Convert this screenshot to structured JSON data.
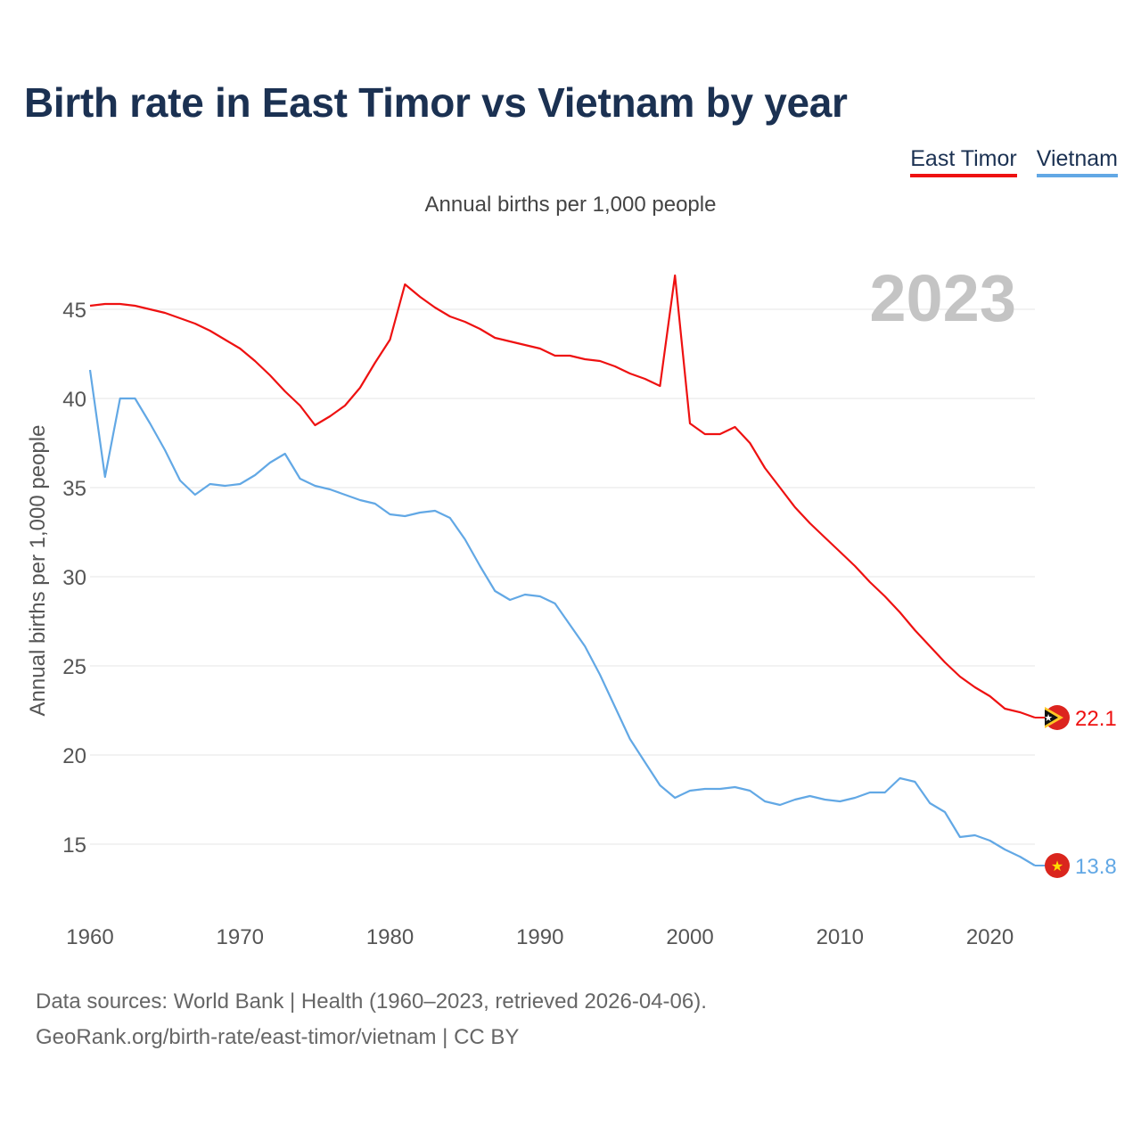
{
  "title": "Birth rate in East Timor vs Vietnam by year",
  "subtitle": "Annual births per 1,000 people",
  "year_watermark": "2023",
  "legend": [
    {
      "label": "East Timor",
      "color": "#ee1111"
    },
    {
      "label": "Vietnam",
      "color": "#62a8e5"
    }
  ],
  "footer": {
    "line1": "Data sources: World Bank | Health (1960–2023, retrieved 2026-04-06).",
    "line2": "GeoRank.org/birth-rate/east-timor/vietnam | CC BY"
  },
  "chart_data": {
    "type": "line",
    "title": "Birth rate in East Timor vs Vietnam by year",
    "ylabel": "Annual births per 1,000 people",
    "xlabel": "",
    "xlim": [
      1960,
      2023
    ],
    "ylim": [
      11,
      49
    ],
    "yticks": [
      15,
      20,
      25,
      30,
      35,
      40,
      45
    ],
    "xticks": [
      1960,
      1970,
      1980,
      1990,
      2000,
      2010,
      2020
    ],
    "grid": true,
    "legend_position": "top-right",
    "x": [
      1960,
      1961,
      1962,
      1963,
      1964,
      1965,
      1966,
      1967,
      1968,
      1969,
      1970,
      1971,
      1972,
      1973,
      1974,
      1975,
      1976,
      1977,
      1978,
      1979,
      1980,
      1981,
      1982,
      1983,
      1984,
      1985,
      1986,
      1987,
      1988,
      1989,
      1990,
      1991,
      1992,
      1993,
      1994,
      1995,
      1996,
      1997,
      1998,
      1999,
      2000,
      2001,
      2002,
      2003,
      2004,
      2005,
      2006,
      2007,
      2008,
      2009,
      2010,
      2011,
      2012,
      2013,
      2014,
      2015,
      2016,
      2017,
      2018,
      2019,
      2020,
      2021,
      2022,
      2023
    ],
    "series": [
      {
        "name": "East Timor",
        "color": "#ee1111",
        "end_label": "22.1",
        "values": [
          45.2,
          45.3,
          45.3,
          45.2,
          45.0,
          44.8,
          44.5,
          44.2,
          43.8,
          43.3,
          42.8,
          42.1,
          41.3,
          40.4,
          39.6,
          38.5,
          39.0,
          39.6,
          40.6,
          42.0,
          43.3,
          46.4,
          45.7,
          45.1,
          44.6,
          44.3,
          43.9,
          43.4,
          43.2,
          43.0,
          42.8,
          42.4,
          42.4,
          42.2,
          42.1,
          41.8,
          41.4,
          41.1,
          40.7,
          46.9,
          38.6,
          38.0,
          38.0,
          38.4,
          37.5,
          36.1,
          35.0,
          33.9,
          33.0,
          32.2,
          31.4,
          30.6,
          29.7,
          28.9,
          28.0,
          27.0,
          26.1,
          25.2,
          24.4,
          23.8,
          23.3,
          22.6,
          22.4,
          22.1
        ]
      },
      {
        "name": "Vietnam",
        "color": "#62a8e5",
        "end_label": "13.8",
        "values": [
          41.6,
          35.6,
          40.0,
          40.0,
          38.6,
          37.1,
          35.4,
          34.6,
          35.2,
          35.1,
          35.2,
          35.7,
          36.4,
          36.9,
          35.5,
          35.1,
          34.9,
          34.6,
          34.3,
          34.1,
          33.5,
          33.4,
          33.6,
          33.7,
          33.3,
          32.1,
          30.6,
          29.2,
          28.7,
          29.0,
          28.9,
          28.5,
          27.3,
          26.1,
          24.5,
          22.7,
          20.9,
          19.6,
          18.3,
          17.6,
          18.0,
          18.1,
          18.1,
          18.2,
          18.0,
          17.4,
          17.2,
          17.5,
          17.7,
          17.5,
          17.4,
          17.6,
          17.9,
          17.9,
          18.7,
          18.5,
          17.3,
          16.8,
          15.4,
          15.5,
          15.2,
          14.7,
          14.3,
          13.8
        ]
      }
    ]
  }
}
